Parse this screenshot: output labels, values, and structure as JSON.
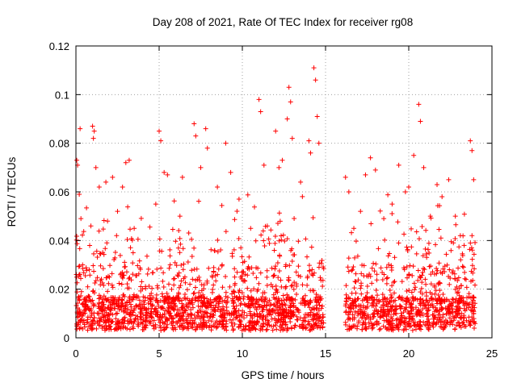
{
  "chart_data": {
    "type": "scatter",
    "title": "Day 208 of 2021, Rate Of TEC Index for receiver rg08",
    "xlabel": "GPS time / hours",
    "ylabel": "ROTI / TECUs",
    "xlim": [
      0,
      25
    ],
    "ylim": [
      0,
      0.12
    ],
    "xticks": [
      0,
      5,
      10,
      15,
      20,
      25
    ],
    "xtick_labels": [
      "0",
      "5",
      "10",
      "15",
      "20",
      "25"
    ],
    "yticks": [
      0,
      0.02,
      0.04,
      0.06,
      0.08,
      0.1,
      0.12
    ],
    "ytick_labels": [
      "0",
      "0.02",
      "0.04",
      "0.06",
      "0.08",
      "0.1",
      "0.12"
    ],
    "grid": true,
    "marker": "+",
    "marker_color": "#ff0000",
    "data_gap_hours": [
      14.9,
      16.2
    ],
    "x_extent": [
      0,
      24
    ],
    "series": [
      {
        "name": "ROTI",
        "points": [
          [
            0.05,
            0.073
          ],
          [
            0.1,
            0.071
          ],
          [
            0.2,
            0.059
          ],
          [
            0.25,
            0.086
          ],
          [
            0.3,
            0.049
          ],
          [
            0.4,
            0.03
          ],
          [
            0.9,
            0.046
          ],
          [
            1.0,
            0.087
          ],
          [
            1.05,
            0.082
          ],
          [
            1.1,
            0.085
          ],
          [
            1.2,
            0.07
          ],
          [
            1.4,
            0.062
          ],
          [
            1.8,
            0.064
          ],
          [
            1.9,
            0.048
          ],
          [
            2.2,
            0.066
          ],
          [
            2.5,
            0.052
          ],
          [
            2.8,
            0.062
          ],
          [
            3.0,
            0.072
          ],
          [
            3.2,
            0.073
          ],
          [
            3.5,
            0.045
          ],
          [
            4.8,
            0.055
          ],
          [
            5.0,
            0.085
          ],
          [
            5.1,
            0.081
          ],
          [
            5.3,
            0.068
          ],
          [
            5.5,
            0.067
          ],
          [
            6.4,
            0.066
          ],
          [
            7.1,
            0.088
          ],
          [
            7.2,
            0.083
          ],
          [
            7.5,
            0.07
          ],
          [
            7.8,
            0.086
          ],
          [
            7.9,
            0.078
          ],
          [
            8.5,
            0.062
          ],
          [
            9.0,
            0.08
          ],
          [
            9.3,
            0.068
          ],
          [
            9.8,
            0.057
          ],
          [
            10.5,
            0.045
          ],
          [
            11.0,
            0.098
          ],
          [
            11.1,
            0.093
          ],
          [
            11.3,
            0.071
          ],
          [
            11.5,
            0.046
          ],
          [
            12.0,
            0.085
          ],
          [
            12.2,
            0.07
          ],
          [
            12.4,
            0.073
          ],
          [
            12.7,
            0.09
          ],
          [
            12.8,
            0.103
          ],
          [
            12.9,
            0.097
          ],
          [
            13.0,
            0.082
          ],
          [
            13.5,
            0.064
          ],
          [
            14.0,
            0.081
          ],
          [
            14.1,
            0.076
          ],
          [
            14.3,
            0.111
          ],
          [
            14.4,
            0.106
          ],
          [
            14.5,
            0.091
          ],
          [
            14.6,
            0.08
          ],
          [
            16.2,
            0.066
          ],
          [
            16.4,
            0.06
          ],
          [
            16.7,
            0.045
          ],
          [
            17.1,
            0.052
          ],
          [
            17.4,
            0.067
          ],
          [
            17.7,
            0.074
          ],
          [
            18.0,
            0.069
          ],
          [
            18.5,
            0.049
          ],
          [
            19.0,
            0.055
          ],
          [
            19.4,
            0.071
          ],
          [
            19.8,
            0.06
          ],
          [
            20.0,
            0.062
          ],
          [
            20.3,
            0.075
          ],
          [
            20.6,
            0.096
          ],
          [
            20.7,
            0.089
          ],
          [
            20.9,
            0.07
          ],
          [
            21.3,
            0.05
          ],
          [
            21.7,
            0.063
          ],
          [
            22.0,
            0.058
          ],
          [
            22.4,
            0.065
          ],
          [
            22.8,
            0.05
          ],
          [
            23.1,
            0.042
          ],
          [
            23.7,
            0.081
          ],
          [
            23.8,
            0.077
          ],
          [
            23.9,
            0.065
          ],
          [
            23.8,
            0.042
          ]
        ]
      }
    ]
  }
}
